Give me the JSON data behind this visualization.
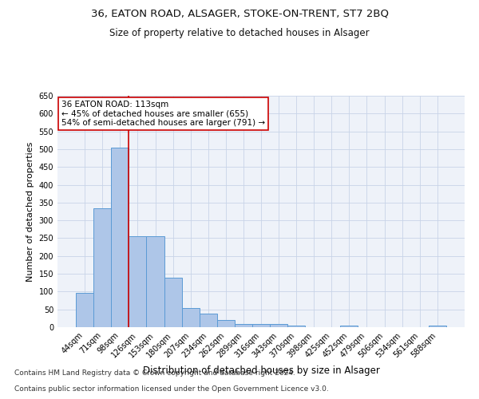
{
  "title_line1": "36, EATON ROAD, ALSAGER, STOKE-ON-TRENT, ST7 2BQ",
  "title_line2": "Size of property relative to detached houses in Alsager",
  "xlabel": "Distribution of detached houses by size in Alsager",
  "ylabel": "Number of detached properties",
  "bin_labels": [
    "44sqm",
    "71sqm",
    "98sqm",
    "126sqm",
    "153sqm",
    "180sqm",
    "207sqm",
    "234sqm",
    "262sqm",
    "289sqm",
    "316sqm",
    "343sqm",
    "370sqm",
    "398sqm",
    "425sqm",
    "452sqm",
    "479sqm",
    "506sqm",
    "534sqm",
    "561sqm",
    "588sqm"
  ],
  "bar_heights": [
    97,
    335,
    505,
    255,
    255,
    138,
    53,
    37,
    21,
    10,
    10,
    10,
    5,
    0,
    0,
    5,
    0,
    0,
    0,
    0,
    5
  ],
  "bar_color": "#aec6e8",
  "bar_edge_color": "#5b9bd5",
  "vline_x_idx": 2,
  "vline_color": "#cc0000",
  "annotation_line1": "36 EATON ROAD: 113sqm",
  "annotation_line2": "← 45% of detached houses are smaller (655)",
  "annotation_line3": "54% of semi-detached houses are larger (791) →",
  "annotation_box_color": "#ffffff",
  "annotation_box_edge": "#cc0000",
  "ylim": [
    0,
    650
  ],
  "yticks": [
    0,
    50,
    100,
    150,
    200,
    250,
    300,
    350,
    400,
    450,
    500,
    550,
    600,
    650
  ],
  "grid_color": "#c8d4e8",
  "footnote_line1": "Contains HM Land Registry data © Crown copyright and database right 2024.",
  "footnote_line2": "Contains public sector information licensed under the Open Government Licence v3.0.",
  "title_fontsize": 9.5,
  "subtitle_fontsize": 8.5,
  "xlabel_fontsize": 8.5,
  "ylabel_fontsize": 8,
  "tick_fontsize": 7,
  "annotation_fontsize": 7.5,
  "footnote_fontsize": 6.5,
  "bg_color": "#eef2f9"
}
